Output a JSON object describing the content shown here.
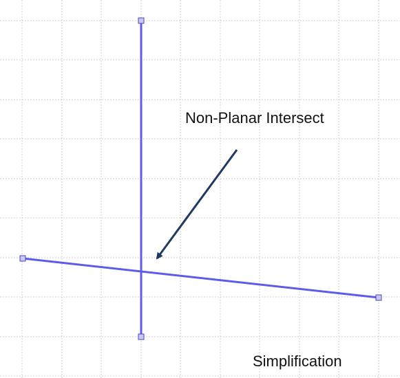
{
  "diagram": {
    "callout": "Non-Planar Intersect",
    "caption": "Simplification"
  },
  "colors": {
    "segment": "#5c5ce8",
    "handle_fill": "#c8c8f4",
    "handle_stroke": "#4646c8",
    "arrow": "#1f3a5f",
    "grid": "#cfcfcf"
  }
}
